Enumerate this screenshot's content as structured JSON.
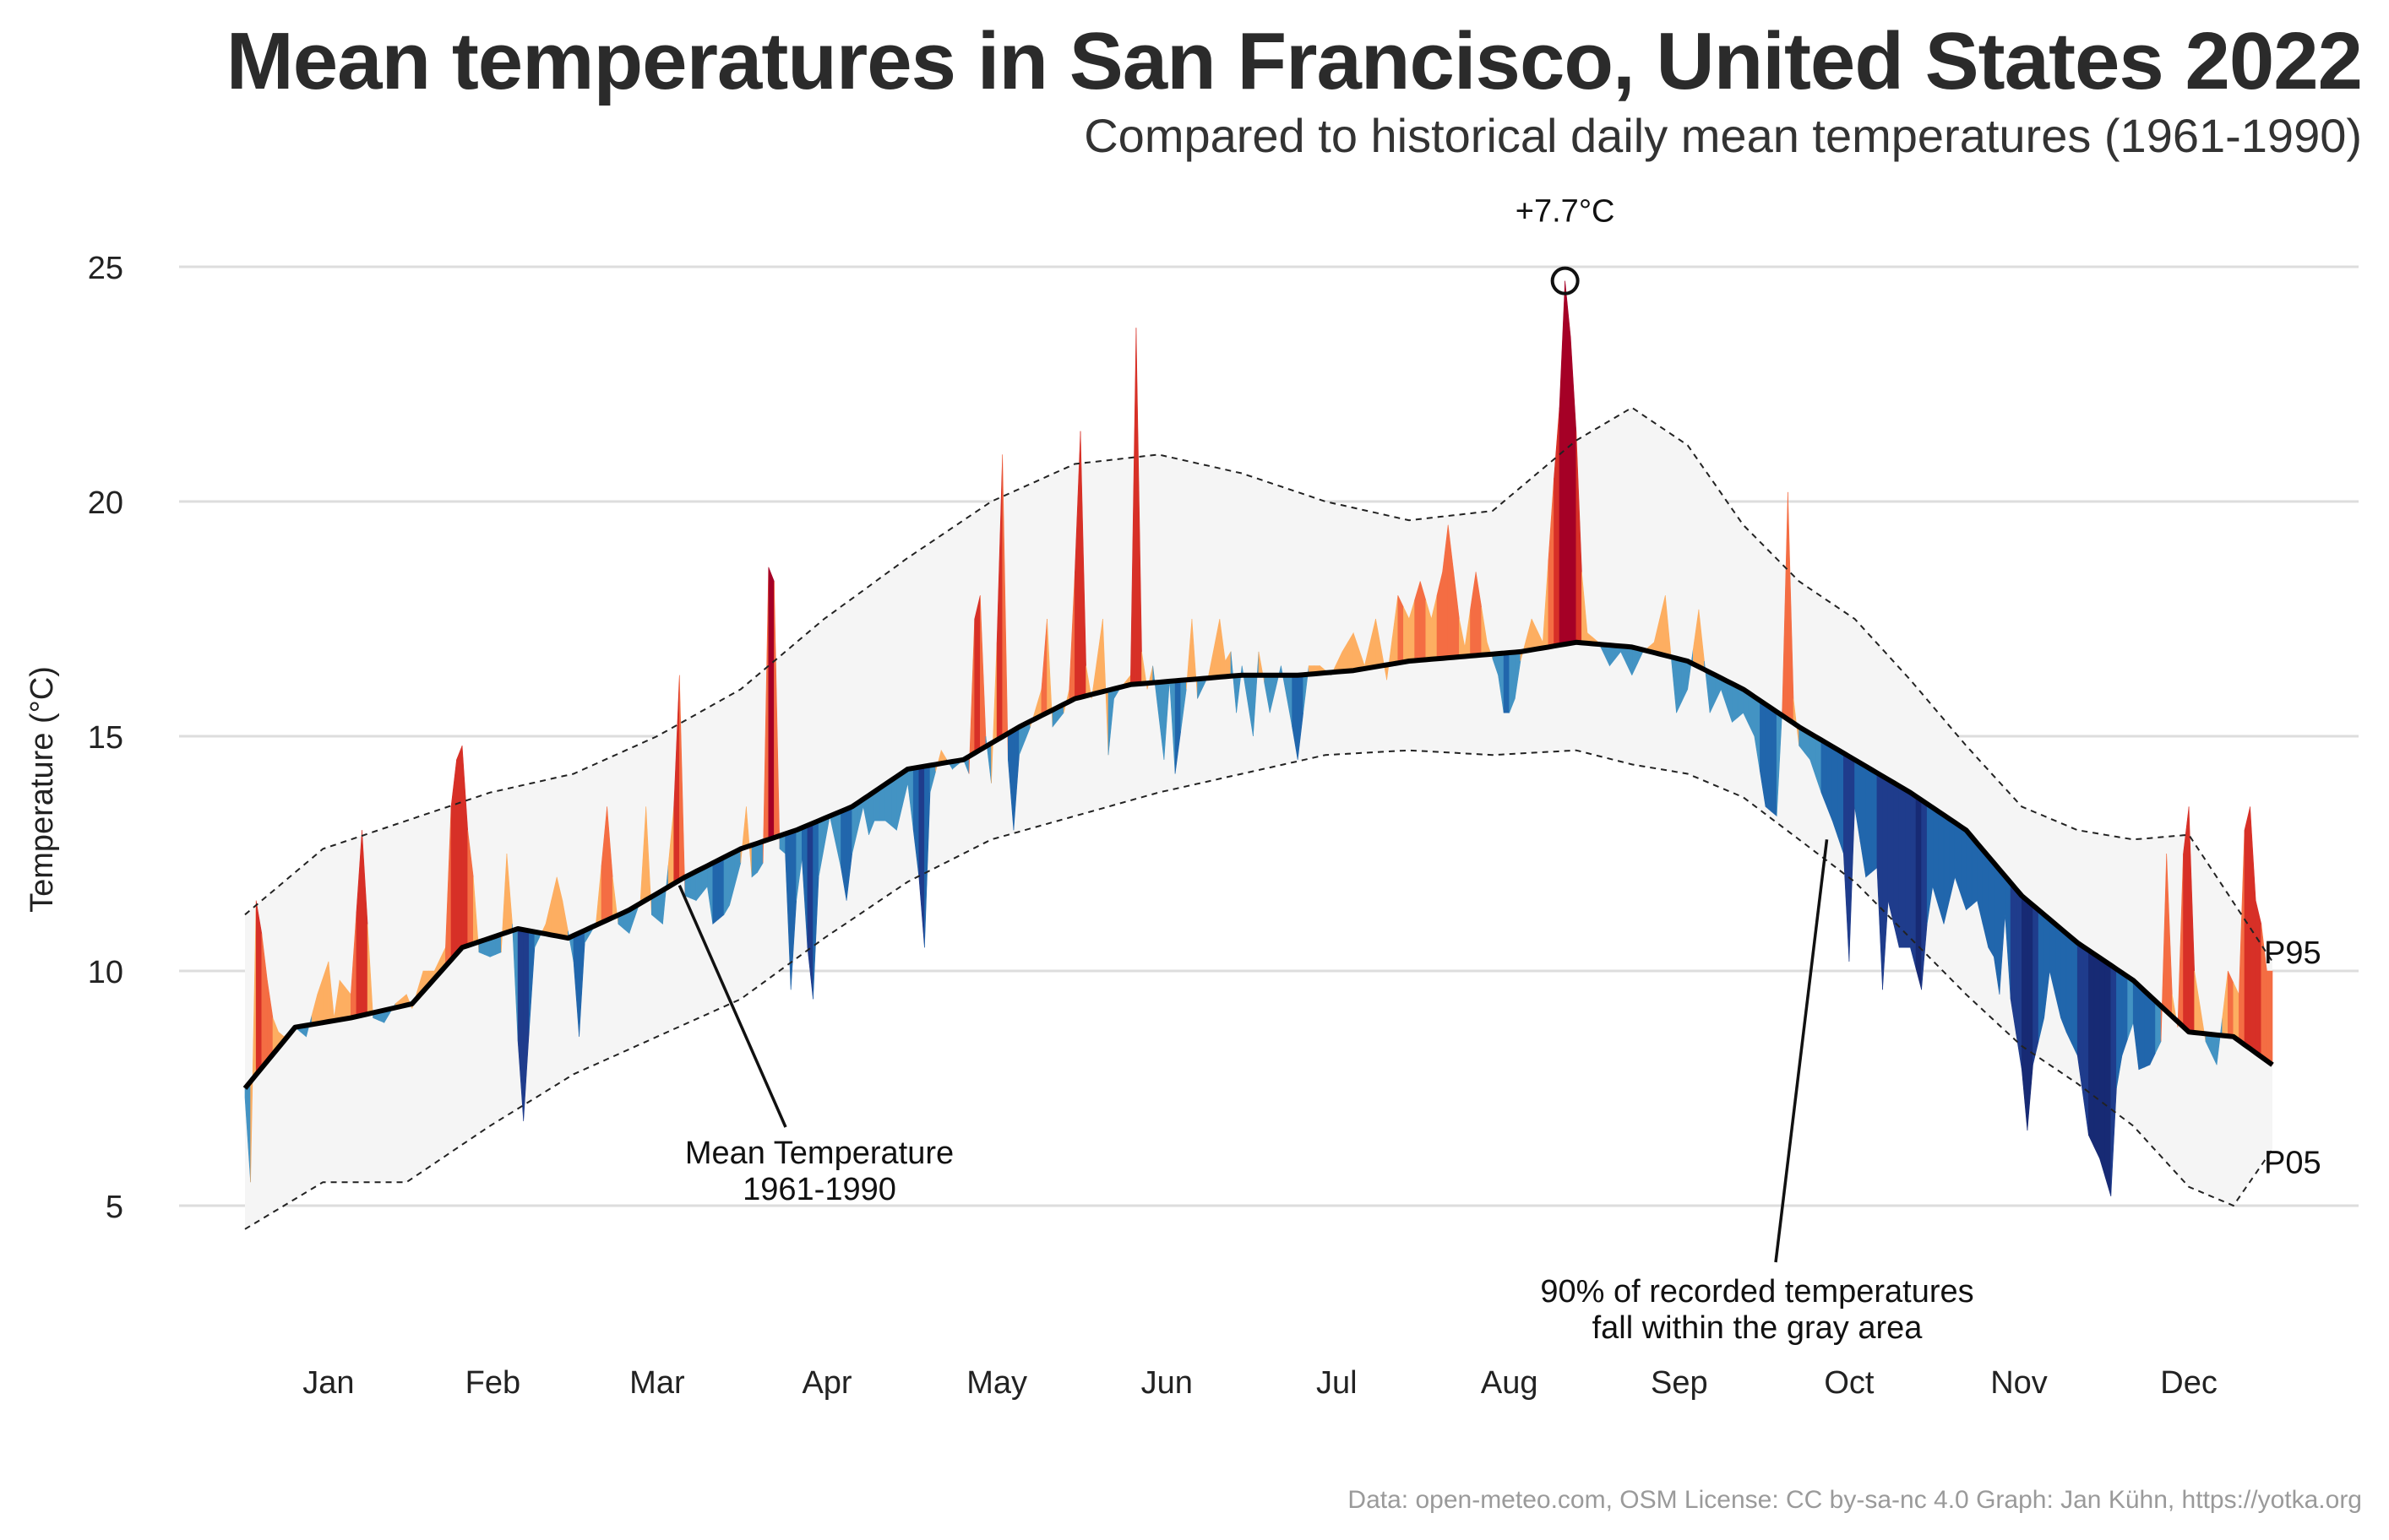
{
  "title": "Mean temperatures in San Francisco, United States 2022",
  "subtitle": "Compared to historical daily mean temperatures (1961-1990)",
  "caption": "Data: open-meteo.com, OSM  License: CC by-sa-nc 4.0  Graph: Jan Kühn, https://yotka.org",
  "colors": {
    "warm_mild": "#fdae61",
    "warm": "#f46d43",
    "hot": "#d73027",
    "very_hot": "#a50026",
    "cool_mild": "#4393c3",
    "cool": "#2166ac",
    "cold": "#1f3c8c",
    "very_cold": "#172a74",
    "band": "#f5f5f5",
    "grid": "#dddddd"
  },
  "annotations": {
    "max_label": "+7.7°C",
    "mean_label_line1": "Mean Temperature",
    "mean_label_line2": "1961-1990",
    "band_label_line1": "90% of recorded temperatures",
    "band_label_line2": "fall within the gray area",
    "p95_label": "P95",
    "p05_label": "P05"
  },
  "chart_data": {
    "type": "area",
    "ylabel": "Temperature (°C)",
    "xlabel": "",
    "ylim": [
      3.5,
      26.5
    ],
    "yticks": [
      5,
      10,
      15,
      20,
      25
    ],
    "months": [
      "Jan",
      "Feb",
      "Mar",
      "Apr",
      "May",
      "Jun",
      "Jul",
      "Aug",
      "Sep",
      "Oct",
      "Nov",
      "Dec"
    ],
    "grid": "horizontal",
    "mean_1961_1990": [
      [
        1,
        7.5
      ],
      [
        10,
        8.8
      ],
      [
        20,
        9.0
      ],
      [
        31,
        9.3
      ],
      [
        40,
        10.5
      ],
      [
        50,
        10.9
      ],
      [
        59,
        10.7
      ],
      [
        70,
        11.3
      ],
      [
        80,
        12.0
      ],
      [
        90,
        12.6
      ],
      [
        100,
        13.0
      ],
      [
        110,
        13.5
      ],
      [
        120,
        14.3
      ],
      [
        130,
        14.5
      ],
      [
        140,
        15.2
      ],
      [
        150,
        15.8
      ],
      [
        160,
        16.1
      ],
      [
        170,
        16.2
      ],
      [
        180,
        16.3
      ],
      [
        190,
        16.3
      ],
      [
        200,
        16.4
      ],
      [
        210,
        16.6
      ],
      [
        220,
        16.7
      ],
      [
        230,
        16.8
      ],
      [
        240,
        17.0
      ],
      [
        250,
        16.9
      ],
      [
        260,
        16.6
      ],
      [
        270,
        16.0
      ],
      [
        280,
        15.2
      ],
      [
        290,
        14.5
      ],
      [
        300,
        13.8
      ],
      [
        310,
        13.0
      ],
      [
        320,
        11.6
      ],
      [
        330,
        10.6
      ],
      [
        340,
        9.8
      ],
      [
        350,
        8.7
      ],
      [
        358,
        8.6
      ],
      [
        365,
        8.0
      ]
    ],
    "p95": [
      [
        1,
        11.2
      ],
      [
        15,
        12.6
      ],
      [
        30,
        13.2
      ],
      [
        45,
        13.8
      ],
      [
        60,
        14.2
      ],
      [
        75,
        15.0
      ],
      [
        90,
        16.0
      ],
      [
        105,
        17.5
      ],
      [
        120,
        18.8
      ],
      [
        135,
        20.0
      ],
      [
        150,
        20.8
      ],
      [
        165,
        21.0
      ],
      [
        180,
        20.6
      ],
      [
        195,
        20.0
      ],
      [
        210,
        19.6
      ],
      [
        225,
        19.8
      ],
      [
        240,
        21.3
      ],
      [
        250,
        22.0
      ],
      [
        260,
        21.2
      ],
      [
        270,
        19.5
      ],
      [
        280,
        18.3
      ],
      [
        290,
        17.5
      ],
      [
        300,
        16.2
      ],
      [
        310,
        14.8
      ],
      [
        320,
        13.5
      ],
      [
        330,
        13.0
      ],
      [
        340,
        12.8
      ],
      [
        350,
        12.9
      ],
      [
        365,
        10.2
      ]
    ],
    "p05": [
      [
        1,
        4.5
      ],
      [
        15,
        5.5
      ],
      [
        30,
        5.5
      ],
      [
        45,
        6.7
      ],
      [
        60,
        7.8
      ],
      [
        75,
        8.6
      ],
      [
        90,
        9.4
      ],
      [
        105,
        10.7
      ],
      [
        120,
        11.9
      ],
      [
        135,
        12.8
      ],
      [
        150,
        13.3
      ],
      [
        165,
        13.8
      ],
      [
        180,
        14.2
      ],
      [
        195,
        14.6
      ],
      [
        210,
        14.7
      ],
      [
        225,
        14.6
      ],
      [
        240,
        14.7
      ],
      [
        250,
        14.4
      ],
      [
        260,
        14.2
      ],
      [
        270,
        13.7
      ],
      [
        280,
        12.8
      ],
      [
        290,
        11.9
      ],
      [
        300,
        10.7
      ],
      [
        310,
        9.5
      ],
      [
        320,
        8.4
      ],
      [
        330,
        7.6
      ],
      [
        340,
        6.7
      ],
      [
        350,
        5.4
      ],
      [
        358,
        5.0
      ],
      [
        365,
        6.2
      ]
    ],
    "observed_2022": [
      [
        1,
        7.3
      ],
      [
        2,
        5.5
      ],
      [
        3,
        11.5
      ],
      [
        4,
        10.8
      ],
      [
        5,
        9.8
      ],
      [
        6,
        9.0
      ],
      [
        7,
        8.7
      ],
      [
        8,
        8.6
      ],
      [
        10,
        8.8
      ],
      [
        12,
        8.6
      ],
      [
        14,
        9.5
      ],
      [
        16,
        10.2
      ],
      [
        17,
        9.0
      ],
      [
        18,
        9.8
      ],
      [
        20,
        9.5
      ],
      [
        22,
        13.0
      ],
      [
        23,
        11.0
      ],
      [
        24,
        9.0
      ],
      [
        26,
        8.9
      ],
      [
        28,
        9.3
      ],
      [
        30,
        9.5
      ],
      [
        31,
        9.2
      ],
      [
        33,
        10.0
      ],
      [
        35,
        10.0
      ],
      [
        37,
        10.5
      ],
      [
        38,
        13.5
      ],
      [
        39,
        14.5
      ],
      [
        40,
        14.8
      ],
      [
        41,
        13.0
      ],
      [
        42,
        12.0
      ],
      [
        43,
        10.4
      ],
      [
        45,
        10.3
      ],
      [
        47,
        10.4
      ],
      [
        48,
        12.5
      ],
      [
        49,
        11.0
      ],
      [
        50,
        8.5
      ],
      [
        51,
        6.8
      ],
      [
        52,
        8.7
      ],
      [
        53,
        10.5
      ],
      [
        55,
        11.0
      ],
      [
        57,
        12.0
      ],
      [
        58,
        11.5
      ],
      [
        60,
        10.2
      ],
      [
        61,
        8.6
      ],
      [
        62,
        10.6
      ],
      [
        64,
        11.0
      ],
      [
        66,
        13.5
      ],
      [
        67,
        12.0
      ],
      [
        68,
        11.0
      ],
      [
        70,
        10.8
      ],
      [
        72,
        11.5
      ],
      [
        73,
        13.5
      ],
      [
        74,
        11.2
      ],
      [
        76,
        11.0
      ],
      [
        78,
        13.5
      ],
      [
        79,
        16.3
      ],
      [
        80,
        11.6
      ],
      [
        82,
        11.5
      ],
      [
        84,
        11.8
      ],
      [
        85,
        11.0
      ],
      [
        87,
        11.2
      ],
      [
        88,
        11.4
      ],
      [
        90,
        12.3
      ],
      [
        91,
        13.5
      ],
      [
        92,
        12.0
      ],
      [
        93,
        12.1
      ],
      [
        94,
        12.3
      ],
      [
        95,
        18.6
      ],
      [
        96,
        18.3
      ],
      [
        97,
        12.6
      ],
      [
        98,
        12.5
      ],
      [
        99,
        9.6
      ],
      [
        100,
        11.5
      ],
      [
        101,
        12.4
      ],
      [
        102,
        10.5
      ],
      [
        103,
        9.4
      ],
      [
        104,
        12.0
      ],
      [
        106,
        13.3
      ],
      [
        108,
        12.2
      ],
      [
        109,
        11.5
      ],
      [
        110,
        12.5
      ],
      [
        112,
        13.5
      ],
      [
        113,
        12.9
      ],
      [
        114,
        13.2
      ],
      [
        116,
        13.2
      ],
      [
        118,
        13.0
      ],
      [
        120,
        14.0
      ],
      [
        122,
        12.0
      ],
      [
        123,
        10.5
      ],
      [
        124,
        13.8
      ],
      [
        126,
        14.7
      ],
      [
        128,
        14.3
      ],
      [
        130,
        14.5
      ],
      [
        131,
        14.2
      ],
      [
        132,
        17.5
      ],
      [
        133,
        18.0
      ],
      [
        134,
        15.0
      ],
      [
        135,
        14.0
      ],
      [
        136,
        17.0
      ],
      [
        137,
        21.0
      ],
      [
        138,
        14.5
      ],
      [
        139,
        13.0
      ],
      [
        140,
        14.6
      ],
      [
        142,
        15.2
      ],
      [
        144,
        16.0
      ],
      [
        145,
        17.5
      ],
      [
        146,
        15.2
      ],
      [
        148,
        15.5
      ],
      [
        149,
        16.0
      ],
      [
        150,
        18.5
      ],
      [
        151,
        21.5
      ],
      [
        152,
        16.5
      ],
      [
        153,
        15.8
      ],
      [
        155,
        17.5
      ],
      [
        156,
        14.6
      ],
      [
        157,
        15.8
      ],
      [
        158,
        16.0
      ],
      [
        160,
        16.3
      ],
      [
        161,
        23.7
      ],
      [
        162,
        16.8
      ],
      [
        163,
        16.0
      ],
      [
        164,
        16.5
      ],
      [
        166,
        14.5
      ],
      [
        167,
        16.2
      ],
      [
        168,
        14.2
      ],
      [
        170,
        16.0
      ],
      [
        171,
        17.5
      ],
      [
        172,
        15.8
      ],
      [
        174,
        16.3
      ],
      [
        176,
        17.5
      ],
      [
        177,
        16.6
      ],
      [
        178,
        16.8
      ],
      [
        179,
        15.5
      ],
      [
        180,
        16.5
      ],
      [
        182,
        15.0
      ],
      [
        183,
        16.8
      ],
      [
        185,
        15.5
      ],
      [
        187,
        16.5
      ],
      [
        189,
        15.2
      ],
      [
        190,
        14.5
      ],
      [
        192,
        16.5
      ],
      [
        194,
        16.5
      ],
      [
        196,
        16.3
      ],
      [
        198,
        16.8
      ],
      [
        200,
        17.2
      ],
      [
        202,
        16.5
      ],
      [
        204,
        17.5
      ],
      [
        206,
        16.2
      ],
      [
        208,
        18.0
      ],
      [
        210,
        17.5
      ],
      [
        212,
        18.3
      ],
      [
        214,
        17.5
      ],
      [
        216,
        18.5
      ],
      [
        217,
        19.5
      ],
      [
        219,
        17.5
      ],
      [
        220,
        16.9
      ],
      [
        222,
        18.5
      ],
      [
        224,
        17.0
      ],
      [
        226,
        16.3
      ],
      [
        227,
        15.5
      ],
      [
        228,
        15.5
      ],
      [
        229,
        15.8
      ],
      [
        230,
        16.6
      ],
      [
        232,
        17.5
      ],
      [
        234,
        17.0
      ],
      [
        236,
        20.5
      ],
      [
        237,
        22.0
      ],
      [
        238,
        24.7
      ],
      [
        239,
        23.5
      ],
      [
        240,
        21.5
      ],
      [
        241,
        18.5
      ],
      [
        242,
        17.2
      ],
      [
        244,
        17.0
      ],
      [
        246,
        16.5
      ],
      [
        248,
        16.8
      ],
      [
        250,
        16.3
      ],
      [
        252,
        16.8
      ],
      [
        254,
        17.0
      ],
      [
        256,
        18.0
      ],
      [
        258,
        15.5
      ],
      [
        260,
        16.0
      ],
      [
        262,
        17.7
      ],
      [
        264,
        15.5
      ],
      [
        266,
        16.0
      ],
      [
        268,
        15.3
      ],
      [
        270,
        15.5
      ],
      [
        272,
        15.0
      ],
      [
        274,
        13.5
      ],
      [
        276,
        13.3
      ],
      [
        277,
        15.6
      ],
      [
        278,
        20.2
      ],
      [
        279,
        15.8
      ],
      [
        280,
        14.8
      ],
      [
        282,
        14.5
      ],
      [
        284,
        13.8
      ],
      [
        286,
        13.2
      ],
      [
        288,
        12.5
      ],
      [
        289,
        10.2
      ],
      [
        290,
        13.5
      ],
      [
        292,
        12.0
      ],
      [
        294,
        12.2
      ],
      [
        295,
        9.6
      ],
      [
        296,
        11.5
      ],
      [
        298,
        10.5
      ],
      [
        300,
        10.5
      ],
      [
        302,
        9.6
      ],
      [
        303,
        11.0
      ],
      [
        304,
        11.8
      ],
      [
        306,
        11.0
      ],
      [
        308,
        12.0
      ],
      [
        310,
        11.3
      ],
      [
        312,
        11.5
      ],
      [
        314,
        10.5
      ],
      [
        315,
        10.3
      ],
      [
        316,
        9.5
      ],
      [
        317,
        11.2
      ],
      [
        318,
        9.4
      ],
      [
        320,
        7.9
      ],
      [
        321,
        6.6
      ],
      [
        322,
        8.0
      ],
      [
        324,
        9.0
      ],
      [
        325,
        10.0
      ],
      [
        327,
        9.0
      ],
      [
        328,
        8.7
      ],
      [
        330,
        8.2
      ],
      [
        332,
        6.5
      ],
      [
        334,
        6.0
      ],
      [
        336,
        5.2
      ],
      [
        337,
        7.5
      ],
      [
        338,
        8.2
      ],
      [
        340,
        8.9
      ],
      [
        341,
        7.9
      ],
      [
        343,
        8.0
      ],
      [
        345,
        8.5
      ],
      [
        346,
        12.5
      ],
      [
        347,
        9.5
      ],
      [
        348,
        8.8
      ],
      [
        349,
        12.5
      ],
      [
        350,
        13.5
      ],
      [
        351,
        10.0
      ],
      [
        353,
        8.5
      ],
      [
        355,
        8.0
      ],
      [
        357,
        10.0
      ],
      [
        359,
        9.5
      ],
      [
        360,
        13.0
      ],
      [
        361,
        13.5
      ],
      [
        362,
        11.5
      ],
      [
        363,
        11.0
      ],
      [
        364,
        10.0
      ],
      [
        365,
        10.0
      ]
    ],
    "max_anomaly": {
      "day": 238,
      "value": 24.7,
      "anomaly": 7.7
    }
  }
}
